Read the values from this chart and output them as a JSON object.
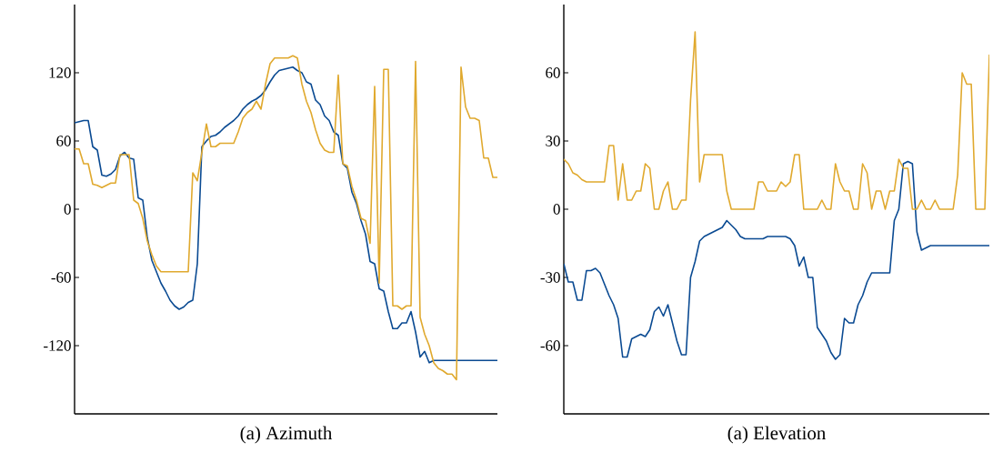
{
  "chart_data": [
    {
      "type": "line",
      "title": "(a) Azimuth",
      "ylim": [
        -180,
        180
      ],
      "yticks": [
        -120,
        -60,
        0,
        60,
        120
      ],
      "tick_labels": "y",
      "categories": [
        null,
        null,
        null,
        null,
        null,
        null,
        null,
        null,
        null,
        null,
        null,
        null,
        null,
        null,
        null,
        null,
        null,
        null,
        null,
        null,
        null,
        null,
        null,
        null,
        null,
        null,
        null,
        null,
        null,
        null,
        null,
        null,
        null,
        null,
        null,
        null,
        null,
        null,
        null,
        null,
        null,
        null,
        null,
        null,
        null,
        null,
        null,
        null,
        null,
        null,
        null,
        null,
        null,
        null,
        null,
        null,
        null,
        null,
        null,
        null,
        null,
        null,
        null,
        null,
        null,
        null,
        null,
        null,
        null,
        null,
        null,
        null,
        null,
        null,
        null,
        null,
        null,
        null,
        null,
        null,
        null,
        null,
        null,
        null,
        null,
        null,
        null,
        null,
        null,
        null,
        null,
        null,
        null,
        null
      ],
      "series": [
        {
          "color": "#0a4a92",
          "values": [
            76,
            77,
            78,
            78,
            55,
            52,
            30,
            29,
            31,
            35,
            47,
            50,
            45,
            44,
            10,
            8,
            -25,
            -45,
            -55,
            -65,
            -72,
            -80,
            -85,
            -88,
            -86,
            -82,
            -80,
            -48,
            55,
            60,
            64,
            65,
            68,
            72,
            75,
            78,
            82,
            88,
            92,
            95,
            97,
            100,
            105,
            112,
            118,
            122,
            123,
            124,
            125,
            122,
            120,
            112,
            110,
            96,
            92,
            82,
            78,
            68,
            65,
            40,
            36,
            15,
            5,
            -10,
            -22,
            -46,
            -48,
            -70,
            -72,
            -90,
            -105,
            -105,
            -100,
            -100,
            -90,
            -108,
            -130,
            -125,
            -135,
            -133,
            -133,
            -133,
            -133,
            -133,
            -133,
            -133,
            -133,
            -133,
            -133,
            -133,
            -133,
            -133,
            -133,
            -133
          ]
        },
        {
          "color": "#e0a92e",
          "values": [
            53,
            53,
            40,
            40,
            22,
            21,
            19,
            21,
            23,
            23,
            48,
            48,
            48,
            8,
            5,
            -8,
            -28,
            -40,
            -50,
            -55,
            -55,
            -55,
            -55,
            -55,
            -55,
            -55,
            32,
            25,
            50,
            75,
            55,
            55,
            58,
            58,
            58,
            58,
            68,
            80,
            85,
            88,
            95,
            88,
            110,
            128,
            133,
            133,
            133,
            133,
            135,
            133,
            110,
            95,
            85,
            70,
            58,
            52,
            50,
            50,
            118,
            40,
            38,
            20,
            8,
            -8,
            -10,
            -30,
            108,
            -65,
            123,
            123,
            -85,
            -85,
            -88,
            -85,
            -85,
            130,
            -95,
            -110,
            -120,
            -135,
            -140,
            -142,
            -145,
            -145,
            -150,
            125,
            90,
            80,
            80,
            78,
            45,
            45,
            28,
            28
          ]
        }
      ]
    },
    {
      "type": "line",
      "title": "(a) Elevation",
      "ylim": [
        -90,
        90
      ],
      "yticks": [
        -60,
        -30,
        0,
        30,
        60
      ],
      "tick_labels": "y",
      "categories": [
        null,
        null,
        null,
        null,
        null,
        null,
        null,
        null,
        null,
        null,
        null,
        null,
        null,
        null,
        null,
        null,
        null,
        null,
        null,
        null,
        null,
        null,
        null,
        null,
        null,
        null,
        null,
        null,
        null,
        null,
        null,
        null,
        null,
        null,
        null,
        null,
        null,
        null,
        null,
        null,
        null,
        null,
        null,
        null,
        null,
        null,
        null,
        null,
        null,
        null,
        null,
        null,
        null,
        null,
        null,
        null,
        null,
        null,
        null,
        null,
        null,
        null,
        null,
        null,
        null,
        null,
        null,
        null,
        null,
        null,
        null,
        null,
        null,
        null,
        null,
        null,
        null,
        null,
        null,
        null,
        null,
        null,
        null,
        null,
        null,
        null,
        null,
        null,
        null,
        null,
        null,
        null,
        null,
        null,
        null
      ],
      "series": [
        {
          "color": "#0a4a92",
          "values": [
            -24,
            -32,
            -32,
            -40,
            -40,
            -27,
            -27,
            -26,
            -28,
            -33,
            -38,
            -42,
            -48,
            -65,
            -65,
            -57,
            -56,
            -55,
            -56,
            -53,
            -45,
            -43,
            -47,
            -42,
            -50,
            -58,
            -64,
            -64,
            -30,
            -23,
            -14,
            -12,
            -11,
            -10,
            -9,
            -8,
            -5,
            -7,
            -9,
            -12,
            -13,
            -13,
            -13,
            -13,
            -13,
            -12,
            -12,
            -12,
            -12,
            -12,
            -13,
            -16,
            -25,
            -21,
            -30,
            -30,
            -52,
            -55,
            -58,
            -63,
            -66,
            -64,
            -48,
            -50,
            -50,
            -42,
            -38,
            -32,
            -28,
            -28,
            -28,
            -28,
            -28,
            -5,
            0,
            20,
            21,
            20,
            -10,
            -18,
            -17,
            -16,
            -16,
            -16,
            -16,
            -16,
            -16,
            -16,
            -16,
            -16,
            -16,
            -16,
            -16,
            -16,
            -16
          ]
        },
        {
          "color": "#e0a92e",
          "values": [
            22,
            20,
            16,
            15,
            13,
            12,
            12,
            12,
            12,
            12,
            28,
            28,
            4,
            20,
            4,
            4,
            8,
            8,
            20,
            18,
            0,
            0,
            8,
            12,
            0,
            0,
            4,
            4,
            48,
            78,
            12,
            24,
            24,
            24,
            24,
            24,
            8,
            0,
            0,
            0,
            0,
            0,
            0,
            12,
            12,
            8,
            8,
            8,
            12,
            10,
            12,
            24,
            24,
            0,
            0,
            0,
            0,
            4,
            0,
            0,
            20,
            12,
            8,
            8,
            0,
            0,
            20,
            16,
            0,
            8,
            8,
            0,
            8,
            8,
            22,
            18,
            18,
            0,
            0,
            4,
            0,
            0,
            4,
            0,
            0,
            0,
            0,
            15,
            60,
            55,
            55,
            0,
            0,
            0,
            68
          ]
        }
      ]
    }
  ]
}
